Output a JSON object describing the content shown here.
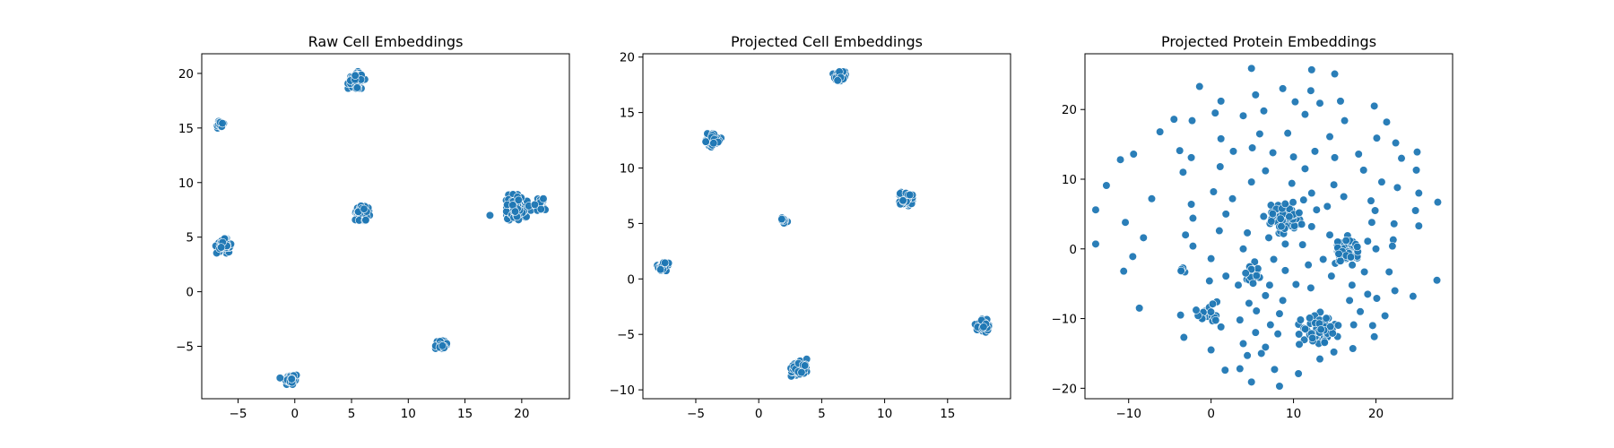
{
  "chart_data": [
    {
      "type": "scatter",
      "title": "Raw Cell Embeddings",
      "xlabel": "",
      "ylabel": "",
      "xlim": [
        -8.2,
        24.2
      ],
      "ylim": [
        -9.8,
        21.8
      ],
      "xticks": [
        -5,
        0,
        5,
        10,
        15,
        20
      ],
      "yticks": [
        -5,
        0,
        5,
        10,
        15,
        20
      ],
      "grid": false,
      "color": "#1f77b4",
      "clusters": [
        {
          "x": -6.6,
          "y": 15.3,
          "r": 0.35,
          "n": 25
        },
        {
          "x": 5.4,
          "y": 19.4,
          "r": 0.7,
          "n": 70
        },
        {
          "x": 6.0,
          "y": 7.2,
          "r": 0.6,
          "n": 60
        },
        {
          "x": -6.3,
          "y": 4.2,
          "r": 0.6,
          "n": 60
        },
        {
          "x": 19.6,
          "y": 7.7,
          "r": 1.1,
          "n": 110
        },
        {
          "x": 21.6,
          "y": 8.0,
          "r": 0.5,
          "n": 30
        },
        {
          "x": 12.9,
          "y": -4.9,
          "r": 0.45,
          "n": 35
        },
        {
          "x": -0.3,
          "y": -8.0,
          "r": 0.45,
          "n": 35
        }
      ],
      "points": [
        {
          "x": 17.2,
          "y": 7.0
        },
        {
          "x": -1.3,
          "y": -7.9
        }
      ]
    },
    {
      "type": "scatter",
      "title": "Projected Cell Embeddings",
      "xlabel": "",
      "ylabel": "",
      "xlim": [
        -9.2,
        20.0
      ],
      "ylim": [
        -10.8,
        20.3
      ],
      "xticks": [
        -5,
        0,
        5,
        10,
        15
      ],
      "yticks": [
        -10,
        -5,
        0,
        5,
        10,
        15,
        20
      ],
      "grid": false,
      "color": "#1f77b4",
      "clusters": [
        {
          "x": 6.4,
          "y": 18.3,
          "r": 0.45,
          "n": 35
        },
        {
          "x": -3.6,
          "y": 12.5,
          "r": 0.55,
          "n": 50
        },
        {
          "x": 11.6,
          "y": 7.2,
          "r": 0.55,
          "n": 50
        },
        {
          "x": 2.0,
          "y": 5.3,
          "r": 0.3,
          "n": 15
        },
        {
          "x": -7.6,
          "y": 1.1,
          "r": 0.45,
          "n": 35
        },
        {
          "x": 17.8,
          "y": -4.2,
          "r": 0.55,
          "n": 50
        },
        {
          "x": 3.1,
          "y": -8.0,
          "r": 0.7,
          "n": 70
        }
      ],
      "points": []
    },
    {
      "type": "scatter",
      "title": "Projected Protein Embeddings",
      "xlabel": "",
      "ylabel": "",
      "xlim": [
        -15.3,
        29.3
      ],
      "ylim": [
        -21.5,
        28.0
      ],
      "xticks": [
        -10,
        0,
        10,
        20
      ],
      "yticks": [
        -20,
        -10,
        0,
        10,
        20
      ],
      "grid": false,
      "color": "#1f77b4",
      "clusters": [
        {
          "x": 8.8,
          "y": 4.6,
          "r": 2.2,
          "n": 70
        },
        {
          "x": 16.6,
          "y": -0.3,
          "r": 2.0,
          "n": 50
        },
        {
          "x": 13.0,
          "y": -11.5,
          "r": 2.2,
          "n": 55
        },
        {
          "x": 5.0,
          "y": -3.4,
          "r": 1.4,
          "n": 20
        },
        {
          "x": -0.6,
          "y": -9.6,
          "r": 1.1,
          "n": 14
        },
        {
          "x": -3.5,
          "y": -3.1,
          "r": 0.5,
          "n": 6
        }
      ],
      "points": [
        {
          "x": 4.9,
          "y": 25.9
        },
        {
          "x": 12.2,
          "y": 25.7
        },
        {
          "x": 15.0,
          "y": 25.1
        },
        {
          "x": -1.4,
          "y": 23.3
        },
        {
          "x": 8.7,
          "y": 23.0
        },
        {
          "x": 12.1,
          "y": 22.7
        },
        {
          "x": 5.4,
          "y": 22.1
        },
        {
          "x": 1.2,
          "y": 21.2
        },
        {
          "x": 10.2,
          "y": 21.1
        },
        {
          "x": 13.2,
          "y": 20.9
        },
        {
          "x": 15.7,
          "y": 21.2
        },
        {
          "x": 19.8,
          "y": 20.5
        },
        {
          "x": -4.5,
          "y": 18.6
        },
        {
          "x": -2.3,
          "y": 18.4
        },
        {
          "x": 0.5,
          "y": 19.5
        },
        {
          "x": 3.9,
          "y": 19.1
        },
        {
          "x": 6.4,
          "y": 19.8
        },
        {
          "x": 11.4,
          "y": 19.3
        },
        {
          "x": 16.2,
          "y": 18.4
        },
        {
          "x": 21.3,
          "y": 18.2
        },
        {
          "x": -6.2,
          "y": 16.8
        },
        {
          "x": 1.2,
          "y": 15.8
        },
        {
          "x": 5.9,
          "y": 16.5
        },
        {
          "x": 9.3,
          "y": 16.6
        },
        {
          "x": 14.4,
          "y": 16.1
        },
        {
          "x": 20.1,
          "y": 15.9
        },
        {
          "x": -9.4,
          "y": 13.6
        },
        {
          "x": -3.8,
          "y": 14.1
        },
        {
          "x": 2.7,
          "y": 14.0
        },
        {
          "x": 7.5,
          "y": 13.8
        },
        {
          "x": 12.6,
          "y": 14.0
        },
        {
          "x": 17.9,
          "y": 13.6
        },
        {
          "x": 22.4,
          "y": 15.2
        },
        {
          "x": -11.0,
          "y": 12.8
        },
        {
          "x": -2.4,
          "y": 13.1
        },
        {
          "x": 5.0,
          "y": 14.5
        },
        {
          "x": 10.0,
          "y": 13.2
        },
        {
          "x": 15.0,
          "y": 13.1
        },
        {
          "x": 23.1,
          "y": 13.0
        },
        {
          "x": 25.0,
          "y": 13.9
        },
        {
          "x": 1.1,
          "y": 11.8
        },
        {
          "x": 6.6,
          "y": 11.2
        },
        {
          "x": 11.4,
          "y": 11.5
        },
        {
          "x": 18.5,
          "y": 11.3
        },
        {
          "x": 24.9,
          "y": 11.3
        },
        {
          "x": -3.4,
          "y": 11.0
        },
        {
          "x": -12.7,
          "y": 9.1
        },
        {
          "x": 4.9,
          "y": 9.6
        },
        {
          "x": 9.8,
          "y": 9.4
        },
        {
          "x": 14.9,
          "y": 9.2
        },
        {
          "x": 20.7,
          "y": 9.6
        },
        {
          "x": 22.6,
          "y": 8.8
        },
        {
          "x": -7.2,
          "y": 7.2
        },
        {
          "x": 0.3,
          "y": 8.2
        },
        {
          "x": 2.6,
          "y": 7.2
        },
        {
          "x": 12.2,
          "y": 8.0
        },
        {
          "x": 16.1,
          "y": 7.5
        },
        {
          "x": 19.4,
          "y": 6.9
        },
        {
          "x": 25.2,
          "y": 8.0
        },
        {
          "x": 27.5,
          "y": 6.7
        },
        {
          "x": -14.0,
          "y": 5.6
        },
        {
          "x": -2.4,
          "y": 6.4
        },
        {
          "x": 1.8,
          "y": 5.0
        },
        {
          "x": 12.8,
          "y": 5.6
        },
        {
          "x": 14.1,
          "y": 6.1
        },
        {
          "x": 19.9,
          "y": 5.5
        },
        {
          "x": 24.8,
          "y": 5.5
        },
        {
          "x": -10.4,
          "y": 3.8
        },
        {
          "x": -2.2,
          "y": 4.4
        },
        {
          "x": 1.0,
          "y": 2.6
        },
        {
          "x": 4.4,
          "y": 2.3
        },
        {
          "x": 12.2,
          "y": 3.2
        },
        {
          "x": 19.5,
          "y": 3.8
        },
        {
          "x": 22.2,
          "y": 3.6
        },
        {
          "x": 25.2,
          "y": 3.3
        },
        {
          "x": -8.2,
          "y": 1.6
        },
        {
          "x": -3.1,
          "y": 2.0
        },
        {
          "x": 7.0,
          "y": 1.6
        },
        {
          "x": 9.0,
          "y": 0.7
        },
        {
          "x": 14.4,
          "y": 2.0
        },
        {
          "x": 19.0,
          "y": 1.1
        },
        {
          "x": 22.1,
          "y": 1.3
        },
        {
          "x": -14.0,
          "y": 0.7
        },
        {
          "x": -2.2,
          "y": 0.4
        },
        {
          "x": 3.9,
          "y": 0.0
        },
        {
          "x": 11.1,
          "y": 0.6
        },
        {
          "x": 20.0,
          "y": 0.0
        },
        {
          "x": 22.0,
          "y": 0.4
        },
        {
          "x": -9.5,
          "y": -1.1
        },
        {
          "x": 0.0,
          "y": -1.4
        },
        {
          "x": 7.6,
          "y": -1.5
        },
        {
          "x": 11.8,
          "y": -2.3
        },
        {
          "x": 13.6,
          "y": -1.5
        },
        {
          "x": 1.8,
          "y": -3.9
        },
        {
          "x": 9.0,
          "y": -3.1
        },
        {
          "x": 14.6,
          "y": -3.9
        },
        {
          "x": 18.6,
          "y": -3.3
        },
        {
          "x": 21.6,
          "y": -3.3
        },
        {
          "x": 27.4,
          "y": -4.5
        },
        {
          "x": -10.6,
          "y": -3.2
        },
        {
          "x": -0.2,
          "y": -4.6
        },
        {
          "x": 3.3,
          "y": -5.2
        },
        {
          "x": 7.1,
          "y": -5.2
        },
        {
          "x": 10.3,
          "y": -5.1
        },
        {
          "x": 12.1,
          "y": -5.6
        },
        {
          "x": 17.1,
          "y": -5.2
        },
        {
          "x": 19.0,
          "y": -6.5
        },
        {
          "x": 22.3,
          "y": -6.0
        },
        {
          "x": 24.5,
          "y": -6.8
        },
        {
          "x": 0.7,
          "y": -7.6
        },
        {
          "x": 4.6,
          "y": -7.8
        },
        {
          "x": 6.6,
          "y": -6.7
        },
        {
          "x": 8.7,
          "y": -7.4
        },
        {
          "x": 16.8,
          "y": -7.4
        },
        {
          "x": 20.1,
          "y": -7.1
        },
        {
          "x": -8.7,
          "y": -8.5
        },
        {
          "x": -3.7,
          "y": -9.5
        },
        {
          "x": 0.2,
          "y": -7.9
        },
        {
          "x": 5.5,
          "y": -8.9
        },
        {
          "x": 8.3,
          "y": -9.3
        },
        {
          "x": 18.1,
          "y": -9.0
        },
        {
          "x": 21.1,
          "y": -9.6
        },
        {
          "x": 3.5,
          "y": -10.2
        },
        {
          "x": 7.2,
          "y": -10.9
        },
        {
          "x": 17.3,
          "y": -10.9
        },
        {
          "x": 19.6,
          "y": -11.0
        },
        {
          "x": -3.3,
          "y": -12.7
        },
        {
          "x": 1.2,
          "y": -11.2
        },
        {
          "x": 5.4,
          "y": -12.0
        },
        {
          "x": 8.1,
          "y": -12.2
        },
        {
          "x": 19.8,
          "y": -12.6
        },
        {
          "x": 0.0,
          "y": -14.5
        },
        {
          "x": 3.9,
          "y": -13.6
        },
        {
          "x": 6.6,
          "y": -14.1
        },
        {
          "x": 10.7,
          "y": -13.7
        },
        {
          "x": 17.2,
          "y": -14.3
        },
        {
          "x": 4.4,
          "y": -15.3
        },
        {
          "x": 6.1,
          "y": -15.0
        },
        {
          "x": 13.2,
          "y": -15.8
        },
        {
          "x": 14.9,
          "y": -14.8
        },
        {
          "x": 1.7,
          "y": -17.4
        },
        {
          "x": 3.5,
          "y": -17.2
        },
        {
          "x": 7.7,
          "y": -17.3
        },
        {
          "x": 10.6,
          "y": -17.9
        },
        {
          "x": 4.9,
          "y": -19.1
        },
        {
          "x": 8.3,
          "y": -19.7
        }
      ]
    }
  ]
}
